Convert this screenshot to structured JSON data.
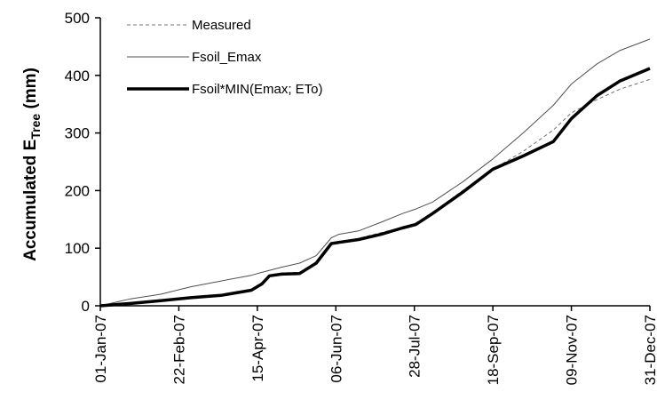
{
  "chart_data": {
    "type": "line",
    "title": "",
    "ylabel": "Accumulated E",
    "ylabel_subscript": "Tree",
    "ylabel_suffix": " (mm)",
    "xlabel": "",
    "ylim": [
      0,
      500
    ],
    "yticks": [
      0,
      100,
      200,
      300,
      400,
      500
    ],
    "xlim": [
      "2007-01-01",
      "2007-12-31"
    ],
    "xticks": [
      {
        "date": "2007-01-01",
        "label": "01-Jan-07"
      },
      {
        "date": "2007-02-22",
        "label": "22-Feb-07"
      },
      {
        "date": "2007-04-15",
        "label": "15-Apr-07"
      },
      {
        "date": "2007-06-06",
        "label": "06-Jun-07"
      },
      {
        "date": "2007-07-28",
        "label": "28-Jul-07"
      },
      {
        "date": "2007-09-18",
        "label": "18-Sep-07"
      },
      {
        "date": "2007-11-09",
        "label": "09-Nov-07"
      },
      {
        "date": "2007-12-31",
        "label": "31-Dec-07"
      }
    ],
    "grid": false,
    "legend_position": "top-left",
    "series": [
      {
        "name": "Measured",
        "style": "dashed",
        "color": "#707070",
        "points": [
          [
            "2007-01-01",
            0
          ],
          [
            "2007-01-21",
            4
          ],
          [
            "2007-02-10",
            9
          ],
          [
            "2007-03-02",
            13
          ],
          [
            "2007-03-22",
            18
          ],
          [
            "2007-04-11",
            27
          ],
          [
            "2007-04-18",
            37
          ],
          [
            "2007-04-23",
            52
          ],
          [
            "2007-05-01",
            57
          ],
          [
            "2007-05-13",
            58
          ],
          [
            "2007-05-24",
            76
          ],
          [
            "2007-06-03",
            108
          ],
          [
            "2007-06-08",
            112
          ],
          [
            "2007-06-21",
            117
          ],
          [
            "2007-07-06",
            127
          ],
          [
            "2007-07-20",
            136
          ],
          [
            "2007-07-29",
            144
          ],
          [
            "2007-08-09",
            162
          ],
          [
            "2007-08-29",
            200
          ],
          [
            "2007-09-18",
            237
          ],
          [
            "2007-10-08",
            268
          ],
          [
            "2007-10-28",
            305
          ],
          [
            "2007-11-09",
            335
          ],
          [
            "2007-11-26",
            358
          ],
          [
            "2007-12-11",
            376
          ],
          [
            "2007-12-31",
            393
          ]
        ]
      },
      {
        "name": "Fsoil_Emax",
        "style": "thin",
        "color": "#505050",
        "points": [
          [
            "2007-01-01",
            0
          ],
          [
            "2007-01-21",
            12
          ],
          [
            "2007-02-10",
            20
          ],
          [
            "2007-03-02",
            33
          ],
          [
            "2007-03-22",
            43
          ],
          [
            "2007-04-11",
            53
          ],
          [
            "2007-04-18",
            58
          ],
          [
            "2007-05-01",
            67
          ],
          [
            "2007-05-13",
            74
          ],
          [
            "2007-05-24",
            87
          ],
          [
            "2007-06-03",
            118
          ],
          [
            "2007-06-08",
            124
          ],
          [
            "2007-06-21",
            130
          ],
          [
            "2007-07-06",
            145
          ],
          [
            "2007-07-20",
            160
          ],
          [
            "2007-07-29",
            168
          ],
          [
            "2007-08-09",
            180
          ],
          [
            "2007-08-29",
            215
          ],
          [
            "2007-09-18",
            255
          ],
          [
            "2007-10-08",
            300
          ],
          [
            "2007-10-28",
            348
          ],
          [
            "2007-11-09",
            385
          ],
          [
            "2007-11-26",
            420
          ],
          [
            "2007-12-11",
            443
          ],
          [
            "2007-12-31",
            463
          ]
        ]
      },
      {
        "name": "Fsoil*MIN(Emax; ETo)",
        "style": "thick",
        "color": "#000000",
        "points": [
          [
            "2007-01-01",
            0
          ],
          [
            "2007-01-21",
            4
          ],
          [
            "2007-02-10",
            9
          ],
          [
            "2007-03-02",
            14
          ],
          [
            "2007-03-22",
            18
          ],
          [
            "2007-04-11",
            27
          ],
          [
            "2007-04-18",
            38
          ],
          [
            "2007-04-23",
            52
          ],
          [
            "2007-05-01",
            55
          ],
          [
            "2007-05-13",
            56
          ],
          [
            "2007-05-24",
            74
          ],
          [
            "2007-06-03",
            108
          ],
          [
            "2007-06-08",
            110
          ],
          [
            "2007-06-21",
            115
          ],
          [
            "2007-07-06",
            124
          ],
          [
            "2007-07-20",
            135
          ],
          [
            "2007-07-29",
            141
          ],
          [
            "2007-08-09",
            160
          ],
          [
            "2007-08-29",
            197
          ],
          [
            "2007-09-18",
            237
          ],
          [
            "2007-10-08",
            260
          ],
          [
            "2007-10-28",
            285
          ],
          [
            "2007-11-09",
            325
          ],
          [
            "2007-11-26",
            365
          ],
          [
            "2007-12-11",
            390
          ],
          [
            "2007-12-31",
            412
          ]
        ]
      }
    ]
  }
}
